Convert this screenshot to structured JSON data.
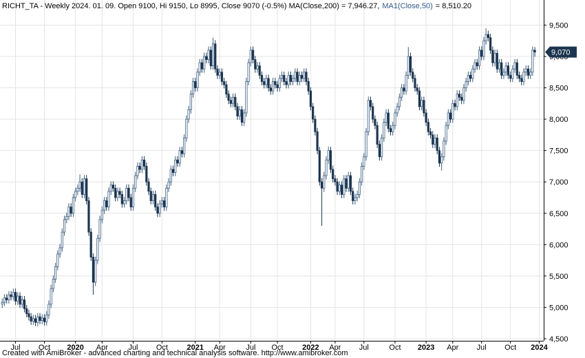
{
  "chart_data": {
    "type": "candlestick",
    "title": "RICHT_TA - Weekly 2024. 01. 09. Open 9100, Hi 9150, Lo 8995, Close 9070 (-0.5%) MA(Close,200) = 7,946.27,",
    "ma_label": "MA1(Close,50)",
    "ma_value": "= 8,510.20",
    "footer": "Created with AmiBroker - advanced charting and technical analysis software. http://www.amibroker.com",
    "up_color": "#3d5f82",
    "down_color": "#1c3550",
    "grid": true,
    "last_label": {
      "value": 9070,
      "label": "9,070"
    },
    "xlim": [
      -1,
      244
    ],
    "ylim": [
      4500,
      9900
    ],
    "xticks": [
      {
        "value": 6,
        "label": "Jul"
      },
      {
        "value": 19,
        "label": "Oct"
      },
      {
        "value": 33,
        "label": "2020"
      },
      {
        "value": 45,
        "label": "Apr"
      },
      {
        "value": 59,
        "label": "Jul"
      },
      {
        "value": 72,
        "label": "Oct"
      },
      {
        "value": 87,
        "label": "2021"
      },
      {
        "value": 98,
        "label": "Apr"
      },
      {
        "value": 112,
        "label": "Jul"
      },
      {
        "value": 124,
        "label": "Oct"
      },
      {
        "value": 139,
        "label": "2022"
      },
      {
        "value": 150,
        "label": "Apr"
      },
      {
        "value": 163,
        "label": "Jul"
      },
      {
        "value": 177,
        "label": "Oct"
      },
      {
        "value": 191,
        "label": "2023"
      },
      {
        "value": 203,
        "label": "Apr"
      },
      {
        "value": 216,
        "label": "Jul"
      },
      {
        "value": 229,
        "label": "Oct"
      },
      {
        "value": 242,
        "label": "2024"
      }
    ],
    "yticks": [
      {
        "value": 4500,
        "label": "4,500"
      },
      {
        "value": 5000,
        "label": "5,000"
      },
      {
        "value": 5500,
        "label": "5,500"
      },
      {
        "value": 6000,
        "label": "6,000"
      },
      {
        "value": 6500,
        "label": "6,500"
      },
      {
        "value": 7000,
        "label": "7,000"
      },
      {
        "value": 7500,
        "label": "7,500"
      },
      {
        "value": 8000,
        "label": "8,000"
      },
      {
        "value": 8500,
        "label": "8,500"
      },
      {
        "value": 9000,
        "label": "9,000"
      },
      {
        "value": 9500,
        "label": "9,500"
      }
    ],
    "open": [
      5050,
      5080,
      5150,
      5120,
      5200,
      5170,
      5240,
      5100,
      5180,
      5050,
      5120,
      4980,
      4900,
      4850,
      4780,
      4820,
      4760,
      4850,
      4790,
      4830,
      4770,
      4880,
      5050,
      5300,
      5450,
      5650,
      5850,
      5950,
      6200,
      6400,
      6450,
      6600,
      6500,
      6750,
      6850,
      6900,
      7000,
      6800,
      7050,
      6700,
      6200,
      5800,
      5400,
      5750,
      6100,
      6400,
      6550,
      6700,
      6600,
      6850,
      6950,
      6900,
      6750,
      6850,
      6800,
      6650,
      6700,
      6900,
      6750,
      6600,
      6900,
      7100,
      7250,
      7200,
      7350,
      7250,
      7000,
      6850,
      6700,
      6800,
      6600,
      6500,
      6650,
      6700,
      6600,
      6900,
      7000,
      7200,
      7150,
      7350,
      7300,
      7500,
      7450,
      7700,
      8000,
      8150,
      8400,
      8600,
      8500,
      8750,
      8900,
      8800,
      9000,
      8950,
      9100,
      8850,
      9200,
      8800,
      8700,
      8750,
      8600,
      8550,
      8400,
      8300,
      8250,
      8350,
      8200,
      8050,
      8150,
      7950,
      8100,
      8600,
      8900,
      9100,
      8950,
      8800,
      8850,
      8700,
      8600,
      8550,
      8650,
      8500,
      8450,
      8600,
      8550,
      8500,
      8650,
      8700,
      8600,
      8550,
      8700,
      8600,
      8650,
      8750,
      8600,
      8700,
      8650,
      8750,
      8600,
      8450,
      8200,
      8000,
      7800,
      7500,
      7000,
      6900,
      7100,
      7350,
      7500,
      7200,
      7050,
      7000,
      6850,
      6950,
      6800,
      7050,
      6900,
      7100,
      6850,
      6700,
      6750,
      6800,
      7000,
      7250,
      7400,
      7800,
      8300,
      8200,
      8000,
      7900,
      7600,
      7400,
      7700,
      7950,
      8100,
      7850,
      7800,
      7900,
      8100,
      8200,
      8350,
      8500,
      8450,
      8700,
      9000,
      8750,
      8650,
      8500,
      8450,
      8200,
      8300,
      8100,
      7950,
      7800,
      7750,
      7600,
      7700,
      7500,
      7300,
      7400,
      7650,
      7900,
      8100,
      8000,
      8250,
      8200,
      8400,
      8350,
      8300,
      8500,
      8600,
      8700,
      8650,
      8800,
      8900,
      8850,
      9100,
      9000,
      9250,
      9350,
      9300,
      9100,
      8900,
      9050,
      8800,
      8900,
      8700,
      8750,
      8850,
      8700,
      8650,
      8800,
      8900,
      8700,
      8650,
      8600,
      8750,
      8800,
      8700,
      8750,
      9100
    ],
    "high": [
      5140,
      5210,
      5210,
      5260,
      5260,
      5300,
      5300,
      5240,
      5240,
      5180,
      5180,
      5040,
      4960,
      4910,
      4880,
      4880,
      4910,
      4910,
      4890,
      4890,
      4940,
      5110,
      5360,
      5510,
      5710,
      5910,
      6010,
      6260,
      6460,
      6510,
      6660,
      6660,
      6810,
      6910,
      6960,
      7120,
      7060,
      7110,
      7110,
      6760,
      6260,
      5860,
      5810,
      6160,
      6460,
      6610,
      6760,
      6760,
      6910,
      7010,
      7010,
      6960,
      6910,
      6910,
      6860,
      6760,
      6960,
      6960,
      6810,
      6960,
      7160,
      7310,
      7310,
      7410,
      7410,
      7310,
      7060,
      6910,
      6860,
      6860,
      6660,
      6710,
      6760,
      6760,
      6960,
      7060,
      7260,
      7260,
      7410,
      7410,
      7560,
      7560,
      7760,
      8060,
      8210,
      8460,
      8660,
      8660,
      8810,
      8960,
      8960,
      9060,
      9060,
      9160,
      9160,
      9300,
      9260,
      8860,
      8810,
      8810,
      8660,
      8610,
      8460,
      8360,
      8410,
      8410,
      8260,
      8210,
      8210,
      8160,
      8660,
      8960,
      9160,
      9160,
      9010,
      8910,
      8910,
      8760,
      8660,
      8710,
      8710,
      8560,
      8660,
      8660,
      8610,
      8710,
      8760,
      8760,
      8660,
      8760,
      8760,
      8710,
      8810,
      8810,
      8760,
      8760,
      8810,
      8810,
      8660,
      8510,
      8260,
      8060,
      7860,
      7560,
      7060,
      7160,
      7410,
      7560,
      7560,
      7260,
      7110,
      7060,
      7010,
      7010,
      7110,
      7110,
      7160,
      7160,
      6910,
      6810,
      6860,
      7060,
      7310,
      7460,
      7860,
      8360,
      8360,
      8260,
      8060,
      7960,
      7660,
      7760,
      8010,
      8160,
      8160,
      7910,
      7960,
      8160,
      8260,
      8410,
      8560,
      8560,
      8760,
      9150,
      9060,
      8810,
      8710,
      8560,
      8510,
      8360,
      8360,
      8160,
      8010,
      7860,
      7810,
      7760,
      7760,
      7560,
      7460,
      7710,
      7960,
      8160,
      8160,
      8310,
      8310,
      8460,
      8460,
      8410,
      8560,
      8660,
      8760,
      8760,
      8860,
      8960,
      8960,
      9160,
      9160,
      9310,
      9450,
      9410,
      9360,
      9160,
      9110,
      9110,
      8960,
      8960,
      8810,
      8910,
      8910,
      8760,
      8860,
      8960,
      8960,
      8760,
      8710,
      8810,
      8860,
      8860,
      8810,
      9160,
      9150
    ],
    "low": [
      4990,
      5020,
      5060,
      5060,
      5110,
      5110,
      5040,
      5040,
      4990,
      4990,
      4920,
      4840,
      4790,
      4720,
      4720,
      4700,
      4700,
      4730,
      4730,
      4710,
      4710,
      4820,
      4990,
      5240,
      5390,
      5590,
      5790,
      5890,
      6140,
      6340,
      6390,
      6440,
      6440,
      6690,
      6790,
      6840,
      6740,
      6740,
      6640,
      6140,
      5740,
      5200,
      5340,
      5690,
      6040,
      6340,
      6490,
      6540,
      6540,
      6790,
      6840,
      6690,
      6690,
      6740,
      6590,
      6590,
      6640,
      6690,
      6540,
      6540,
      6840,
      7040,
      7140,
      7140,
      7190,
      6940,
      6790,
      6640,
      6640,
      6540,
      6440,
      6440,
      6590,
      6540,
      6540,
      6840,
      6940,
      7090,
      7090,
      7240,
      7240,
      7390,
      7390,
      7640,
      7940,
      8090,
      8340,
      8440,
      8440,
      8690,
      8740,
      8740,
      8890,
      8890,
      8790,
      8790,
      8740,
      8640,
      8640,
      8540,
      8490,
      8340,
      8240,
      8190,
      8190,
      8140,
      7990,
      7990,
      7890,
      7890,
      8040,
      8540,
      8840,
      8890,
      8740,
      8740,
      8640,
      8540,
      8490,
      8490,
      8440,
      8390,
      8390,
      8490,
      8440,
      8440,
      8590,
      8540,
      8490,
      8490,
      8540,
      8540,
      8590,
      8540,
      8540,
      8590,
      8590,
      8540,
      8390,
      8140,
      7940,
      7740,
      7440,
      6940,
      6300,
      6840,
      7040,
      7290,
      7140,
      6990,
      6940,
      6790,
      6790,
      6740,
      6740,
      6840,
      6840,
      6790,
      6640,
      6640,
      6690,
      6740,
      6940,
      7190,
      7340,
      7740,
      8140,
      7940,
      7840,
      7540,
      7340,
      7340,
      7640,
      7890,
      7790,
      7740,
      7740,
      7840,
      8040,
      8140,
      8290,
      8390,
      8390,
      8640,
      8690,
      8590,
      8440,
      8390,
      8140,
      8140,
      8040,
      7890,
      7740,
      7690,
      7540,
      7540,
      7440,
      7240,
      7180,
      7340,
      7590,
      7840,
      7940,
      7940,
      8140,
      8140,
      8290,
      8240,
      8240,
      8440,
      8540,
      8590,
      8590,
      8740,
      8790,
      8790,
      8940,
      8940,
      9190,
      9240,
      9040,
      8840,
      8840,
      8740,
      8740,
      8640,
      8640,
      8690,
      8640,
      8590,
      8590,
      8740,
      8640,
      8590,
      8540,
      8540,
      8690,
      8640,
      8640,
      8690,
      8995
    ],
    "close": [
      5080,
      5150,
      5120,
      5200,
      5170,
      5240,
      5100,
      5180,
      5050,
      5120,
      4980,
      4900,
      4850,
      4780,
      4820,
      4760,
      4850,
      4790,
      4830,
      4770,
      4880,
      5050,
      5300,
      5450,
      5650,
      5850,
      5950,
      6200,
      6400,
      6450,
      6600,
      6500,
      6750,
      6850,
      6900,
      7000,
      6800,
      7050,
      6700,
      6200,
      5800,
      5400,
      5750,
      6100,
      6400,
      6550,
      6700,
      6600,
      6850,
      6950,
      6900,
      6750,
      6850,
      6800,
      6650,
      6700,
      6900,
      6750,
      6600,
      6900,
      7100,
      7250,
      7200,
      7350,
      7250,
      7000,
      6850,
      6700,
      6800,
      6600,
      6500,
      6650,
      6700,
      6600,
      6900,
      7000,
      7200,
      7150,
      7350,
      7300,
      7500,
      7450,
      7700,
      8000,
      8150,
      8400,
      8600,
      8500,
      8750,
      8900,
      8800,
      9000,
      8950,
      9100,
      8850,
      9200,
      8800,
      8700,
      8750,
      8600,
      8550,
      8400,
      8300,
      8250,
      8350,
      8200,
      8050,
      8150,
      7950,
      8100,
      8600,
      8900,
      9100,
      8950,
      8800,
      8850,
      8700,
      8600,
      8550,
      8650,
      8500,
      8450,
      8600,
      8550,
      8500,
      8650,
      8700,
      8600,
      8550,
      8700,
      8600,
      8650,
      8750,
      8600,
      8700,
      8650,
      8750,
      8600,
      8450,
      8200,
      8000,
      7800,
      7500,
      7000,
      6900,
      7100,
      7350,
      7500,
      7200,
      7050,
      7000,
      6850,
      6950,
      6800,
      7050,
      6900,
      7100,
      6850,
      6700,
      6750,
      6800,
      7000,
      7250,
      7400,
      7800,
      8300,
      8200,
      8000,
      7900,
      7600,
      7400,
      7700,
      7950,
      8100,
      7850,
      7800,
      7900,
      8100,
      8200,
      8350,
      8500,
      8450,
      8700,
      9000,
      8750,
      8650,
      8500,
      8450,
      8200,
      8300,
      8100,
      7950,
      7800,
      7750,
      7600,
      7700,
      7500,
      7300,
      7400,
      7650,
      7900,
      8100,
      8000,
      8250,
      8200,
      8400,
      8350,
      8300,
      8500,
      8600,
      8700,
      8650,
      8800,
      8900,
      8850,
      9100,
      9000,
      9250,
      9350,
      9300,
      9100,
      8900,
      9050,
      8800,
      8900,
      8700,
      8750,
      8850,
      8700,
      8650,
      8800,
      8900,
      8700,
      8650,
      8600,
      8750,
      8800,
      8700,
      8750,
      9100,
      9070
    ]
  }
}
